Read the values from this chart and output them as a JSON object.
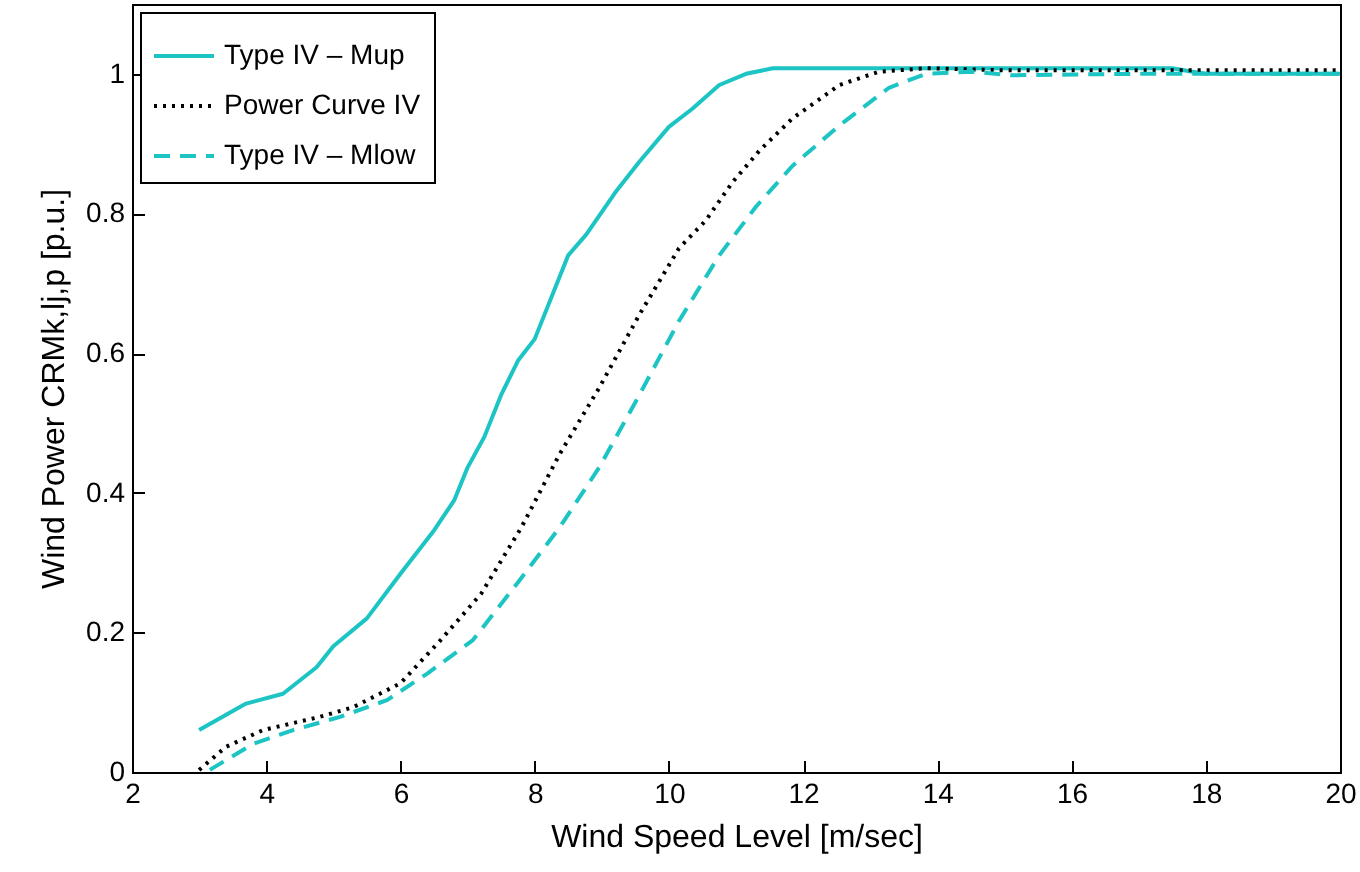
{
  "chart_data": {
    "type": "line",
    "xlabel": "Wind Speed Level [m/sec]",
    "ylabel": "Wind Power CRMk,lj,p [p.u.]",
    "xlim": [
      2,
      20
    ],
    "xticks": [
      2,
      4,
      6,
      8,
      10,
      12,
      14,
      16,
      18,
      20
    ],
    "ylim": [
      0,
      1.1
    ],
    "yticks": [
      0,
      0.2,
      0.4,
      0.6,
      0.8,
      1
    ],
    "grid": false,
    "legend": "top left",
    "marker": "none",
    "series": [
      {
        "name": "Type IV – Mup",
        "color": "#1cc4c4",
        "line_style": "solid",
        "x": [
          3.0,
          3.7,
          4.25,
          4.75,
          5.0,
          5.5,
          6.0,
          6.5,
          6.8,
          7.0,
          7.25,
          7.5,
          7.75,
          8.0,
          8.5,
          8.77,
          9.2,
          9.56,
          10.0,
          10.35,
          10.75,
          11.15,
          11.55,
          12,
          14,
          16,
          17.5,
          17.8,
          18,
          20
        ],
        "values": [
          0.06,
          0.098,
          0.112,
          0.15,
          0.18,
          0.22,
          0.284,
          0.346,
          0.389,
          0.436,
          0.48,
          0.54,
          0.589,
          0.62,
          0.74,
          0.77,
          0.83,
          0.874,
          0.924,
          0.95,
          0.984,
          1.0,
          1.008,
          1.008,
          1.008,
          1.008,
          1.008,
          1.003,
          1.0,
          1.0
        ]
      },
      {
        "name": "Power Curve IV",
        "color": "#000000",
        "line_style": "dotted",
        "x": [
          3.0,
          3.4,
          3.95,
          4.8,
          5.3,
          6.0,
          6.6,
          7.2,
          7.8,
          8.37,
          8.96,
          9.56,
          10.15,
          10.55,
          10.95,
          11.35,
          11.84,
          12.54,
          13.13,
          13.83,
          15,
          17,
          20
        ],
        "values": [
          0.003,
          0.036,
          0.06,
          0.079,
          0.093,
          0.127,
          0.189,
          0.255,
          0.35,
          0.455,
          0.55,
          0.655,
          0.75,
          0.79,
          0.845,
          0.89,
          0.936,
          0.984,
          1.003,
          1.008,
          1.005,
          1.005,
          1.005
        ]
      },
      {
        "name": "Type IV – Mlow",
        "color": "#1cc4c4",
        "line_style": "dashed",
        "x": [
          3.16,
          3.8,
          4.4,
          5.1,
          5.8,
          6.4,
          7.08,
          7.77,
          8.37,
          8.96,
          9.56,
          10.15,
          10.75,
          11.3,
          11.84,
          12.54,
          13.28,
          13.83,
          14.52,
          15.1,
          17,
          20
        ],
        "values": [
          0.003,
          0.04,
          0.06,
          0.079,
          0.103,
          0.141,
          0.189,
          0.274,
          0.35,
          0.436,
          0.54,
          0.646,
          0.74,
          0.81,
          0.868,
          0.926,
          0.98,
          1.0,
          1.003,
          0.998,
          1.0,
          1.0
        ]
      }
    ]
  }
}
